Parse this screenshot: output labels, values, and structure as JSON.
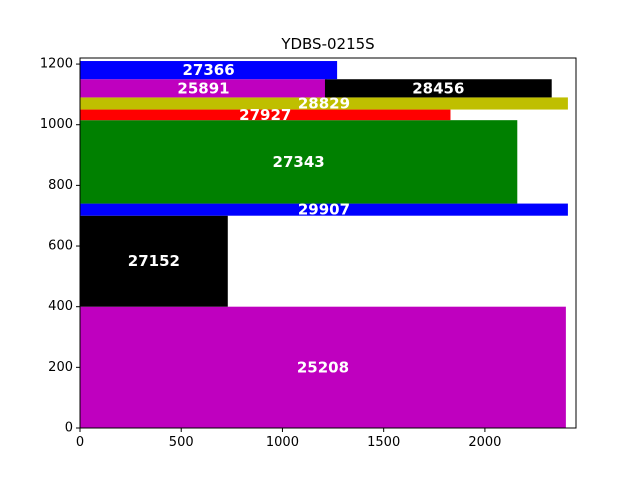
{
  "chart_data": {
    "type": "bar",
    "title": "YDBS-0215S",
    "xlabel": "",
    "ylabel": "",
    "xlim": [
      0,
      2450
    ],
    "ylim": [
      0,
      1220
    ],
    "xticks": [
      0,
      500,
      1000,
      1500,
      2000
    ],
    "yticks": [
      0,
      200,
      400,
      600,
      800,
      1000,
      1200
    ],
    "grid": false,
    "legend": "none",
    "rectangles": [
      {
        "label": "25208",
        "x0": 0,
        "x1": 2400,
        "y0": 0,
        "y1": 400,
        "color": "#bf00bf"
      },
      {
        "label": "27152",
        "x0": 0,
        "x1": 730,
        "y0": 400,
        "y1": 700,
        "color": "#000000"
      },
      {
        "label": "29907",
        "x0": 0,
        "x1": 2410,
        "y0": 700,
        "y1": 740,
        "color": "#0000ff"
      },
      {
        "label": "27343",
        "x0": 0,
        "x1": 2160,
        "y0": 740,
        "y1": 1015,
        "color": "#008000"
      },
      {
        "label": "27927",
        "x0": 0,
        "x1": 1830,
        "y0": 1015,
        "y1": 1050,
        "color": "#ff0000"
      },
      {
        "label": "28829",
        "x0": 0,
        "x1": 2410,
        "y0": 1050,
        "y1": 1090,
        "color": "#bfbf00"
      },
      {
        "label": "25891",
        "x0": 0,
        "x1": 1220,
        "y0": 1090,
        "y1": 1150,
        "color": "#bf00bf"
      },
      {
        "label": "28456",
        "x0": 1210,
        "x1": 2330,
        "y0": 1090,
        "y1": 1150,
        "color": "#000000"
      },
      {
        "label": "27366",
        "x0": 0,
        "x1": 1270,
        "y0": 1150,
        "y1": 1210,
        "color": "#0000ff"
      }
    ]
  }
}
